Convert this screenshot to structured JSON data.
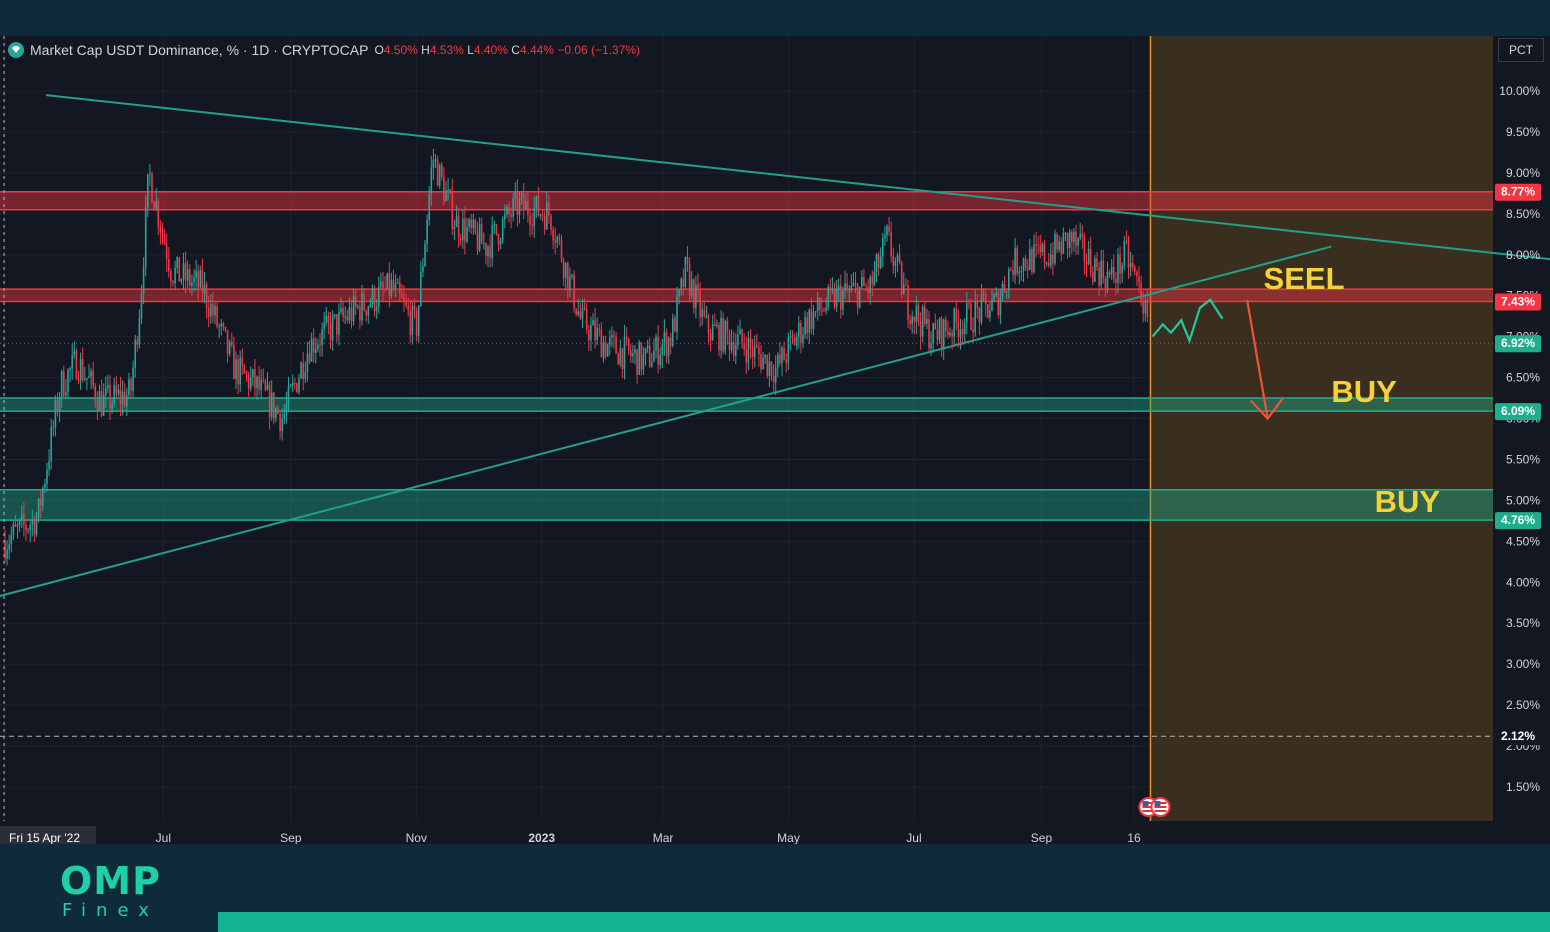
{
  "header": {
    "title": "Market Cap USDT Dominance, % · 1D · CRYPTOCAP",
    "open_label": "O",
    "open": "4.50%",
    "high_label": "H",
    "high": "4.53%",
    "low_label": "L",
    "low": "4.40%",
    "close_label": "C",
    "close": "4.44%",
    "change": "−0.06 (−1.37%)"
  },
  "scale_button": "PCT",
  "brand": {
    "name": "OMP",
    "sub": "Finex"
  },
  "colors": {
    "up": "#26a69a",
    "down": "#f23645",
    "resistance": "#f23645",
    "support": "#1fae8c",
    "trendline": "#22a08a",
    "projection_zone": "#3a2f1e",
    "projection_line": "#e8922a",
    "annotation": "#f5d13a"
  },
  "chart_data": {
    "type": "candlestick",
    "y_axis": {
      "range": [
        1.0,
        10.5
      ],
      "scale": "percent",
      "ticks": [
        "10.00%",
        "9.50%",
        "9.00%",
        "8.50%",
        "8.00%",
        "7.50%",
        "7.00%",
        "6.50%",
        "6.00%",
        "5.50%",
        "5.00%",
        "4.50%",
        "4.00%",
        "3.50%",
        "3.00%",
        "2.50%",
        "2.00%",
        "1.50%"
      ],
      "tick_values": [
        10.0,
        9.5,
        9.0,
        8.5,
        8.0,
        7.5,
        7.0,
        6.5,
        6.0,
        5.5,
        5.0,
        4.5,
        4.0,
        3.5,
        3.0,
        2.5,
        2.0,
        1.5
      ]
    },
    "x_axis": {
      "labels": [
        {
          "date": "2022-04-15",
          "text": "Fri 15 Apr '22"
        },
        {
          "date": "2022-07-01",
          "text": "Jul"
        },
        {
          "date": "2022-09-01",
          "text": "Sep"
        },
        {
          "date": "2022-11-01",
          "text": "Nov"
        },
        {
          "date": "2023-01-01",
          "text": "2023"
        },
        {
          "date": "2023-03-01",
          "text": "Mar"
        },
        {
          "date": "2023-05-01",
          "text": "May"
        },
        {
          "date": "2023-07-01",
          "text": "Jul"
        },
        {
          "date": "2023-09-01",
          "text": "Sep"
        },
        {
          "date": "2023-10-16",
          "text": "16"
        }
      ]
    },
    "price_path": [
      [
        "2022-04-15",
        4.5
      ],
      [
        "2022-05-01",
        4.8
      ],
      [
        "2022-05-12",
        6.4
      ],
      [
        "2022-05-20",
        6.7
      ],
      [
        "2022-06-01",
        6.2
      ],
      [
        "2022-06-15",
        6.3
      ],
      [
        "2022-06-20",
        7.5
      ],
      [
        "2022-06-24",
        9.0
      ],
      [
        "2022-07-05",
        7.8
      ],
      [
        "2022-07-20",
        7.6
      ],
      [
        "2022-08-05",
        6.6
      ],
      [
        "2022-08-15",
        6.4
      ],
      [
        "2022-08-28",
        6.0
      ],
      [
        "2022-09-10",
        6.9
      ],
      [
        "2022-10-01",
        7.3
      ],
      [
        "2022-10-20",
        7.6
      ],
      [
        "2022-11-01",
        7.1
      ],
      [
        "2022-11-09",
        9.2
      ],
      [
        "2022-11-20",
        8.4
      ],
      [
        "2022-12-05",
        8.1
      ],
      [
        "2022-12-20",
        8.6
      ],
      [
        "2023-01-05",
        8.5
      ],
      [
        "2023-01-20",
        7.2
      ],
      [
        "2023-02-01",
        6.9
      ],
      [
        "2023-02-20",
        6.7
      ],
      [
        "2023-03-05",
        7.0
      ],
      [
        "2023-03-12",
        7.8
      ],
      [
        "2023-03-22",
        7.1
      ],
      [
        "2023-04-10",
        6.9
      ],
      [
        "2023-04-25",
        6.6
      ],
      [
        "2023-05-10",
        7.2
      ],
      [
        "2023-05-25",
        7.5
      ],
      [
        "2023-06-10",
        7.6
      ],
      [
        "2023-06-18",
        8.2
      ],
      [
        "2023-06-28",
        7.4
      ],
      [
        "2023-07-10",
        7.0
      ],
      [
        "2023-07-25",
        7.2
      ],
      [
        "2023-08-10",
        7.4
      ],
      [
        "2023-08-18",
        7.9
      ],
      [
        "2023-09-05",
        8.0
      ],
      [
        "2023-09-15",
        8.2
      ],
      [
        "2023-09-25",
        7.9
      ],
      [
        "2023-10-05",
        7.7
      ],
      [
        "2023-10-12",
        8.0
      ],
      [
        "2023-10-20",
        7.5
      ],
      [
        "2023-10-24",
        6.85
      ]
    ],
    "price_labels": [
      {
        "value": 8.77,
        "text": "8.77%",
        "color": "#f23645"
      },
      {
        "value": 7.43,
        "text": "7.43%",
        "color": "#f23645"
      },
      {
        "value": 6.92,
        "text": "6.92%",
        "color": "#1fae8c"
      },
      {
        "value": 6.09,
        "text": "6.09%",
        "color": "#1fae8c"
      },
      {
        "value": 4.76,
        "text": "4.76%",
        "color": "#1fae8c"
      },
      {
        "value": 2.12,
        "text": "2.12%",
        "color": "#ffffff",
        "dark": true
      }
    ],
    "zones": [
      {
        "type": "resistance",
        "from": 8.55,
        "to": 8.77
      },
      {
        "type": "resistance",
        "from": 7.43,
        "to": 7.58
      },
      {
        "type": "support",
        "from": 6.09,
        "to": 6.25
      },
      {
        "type": "support",
        "from": 4.76,
        "to": 5.13
      }
    ],
    "trendlines": [
      {
        "from": [
          "2022-05-05",
          9.95
        ],
        "to": [
          "2024-05-15",
          7.92
        ]
      },
      {
        "from": [
          "2022-04-12",
          3.83
        ],
        "to": [
          "2024-01-20",
          8.1
        ]
      }
    ],
    "projection_start": "2023-10-24",
    "reference_dotted": 6.92,
    "reference_dashed": 2.12,
    "annotations": [
      {
        "text": "SEEL",
        "date": "2023-12-18",
        "value": 7.58
      },
      {
        "text": "BUY",
        "date": "2024-01-20",
        "value": 6.2
      },
      {
        "text": "BUY",
        "date": "2024-02-10",
        "value": 4.86
      }
    ],
    "forecast_path": [
      [
        "2023-10-25",
        7.0
      ],
      [
        "2023-10-30",
        7.15
      ],
      [
        "2023-11-03",
        7.05
      ],
      [
        "2023-11-08",
        7.2
      ],
      [
        "2023-11-12",
        6.95
      ],
      [
        "2023-11-17",
        7.35
      ],
      [
        "2023-11-22",
        7.45
      ],
      [
        "2023-11-28",
        7.22
      ]
    ],
    "down_arrow": {
      "from": [
        "2023-12-10",
        7.45
      ],
      "to": [
        "2023-12-20",
        6.0
      ]
    }
  }
}
